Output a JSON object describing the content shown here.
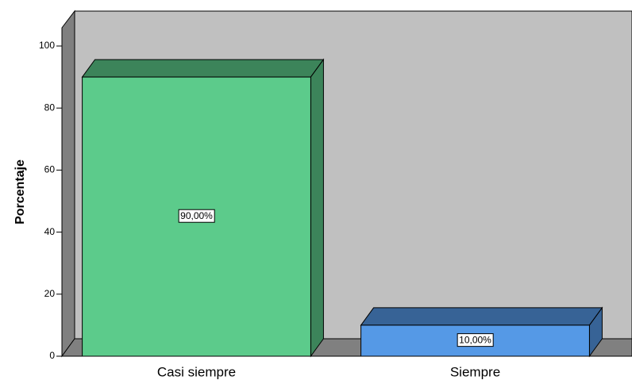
{
  "chart_data": {
    "type": "bar3d",
    "ylabel": "Porcentaje",
    "categories": [
      "Casi siempre",
      "Siempre"
    ],
    "series": [
      {
        "name": null,
        "colors": [
          "#5ccb8b",
          "#5599e6"
        ],
        "values": [
          90,
          10
        ],
        "value_labels": [
          "90,00%",
          "10,00%"
        ]
      }
    ],
    "ylim": [
      0,
      100
    ],
    "yticks": [
      0,
      20,
      40,
      60,
      80,
      100
    ],
    "grid": false
  }
}
